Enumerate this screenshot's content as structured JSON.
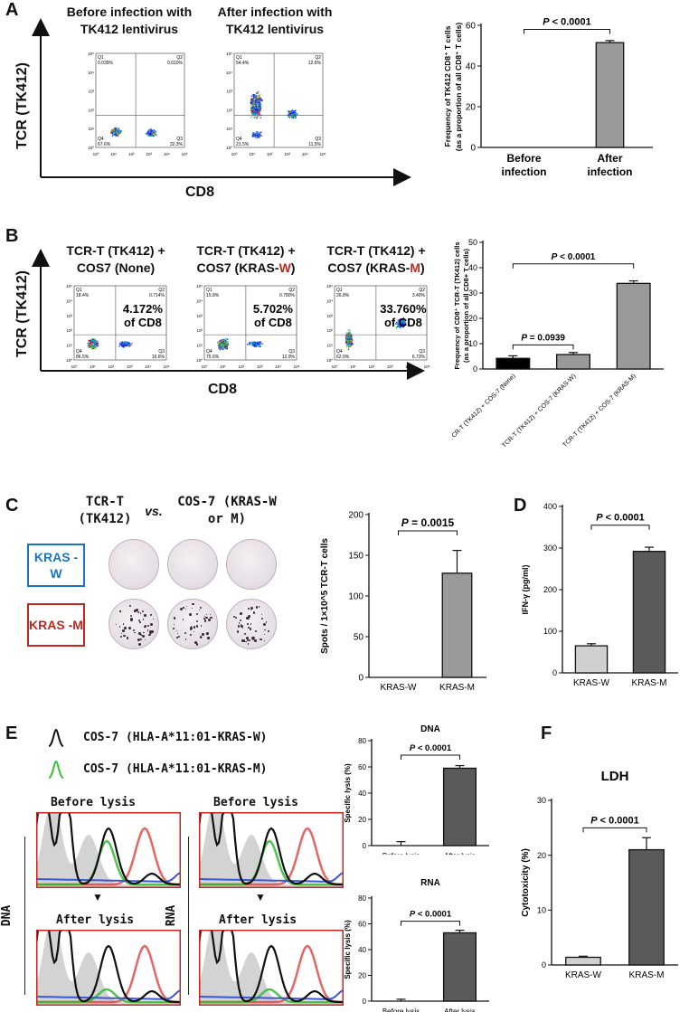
{
  "panels": {
    "A": {
      "letter": "A",
      "before_title": "Before infection with TK412 lentivirus",
      "after_title": "After infection with TK412 lentivirus",
      "y_axis": "TCR (TK412)",
      "x_axis": "CD8",
      "before_quadrants": {
        "q1": "0.039%",
        "q2": "0.010%",
        "q3": "32.3%",
        "q4": "67.6%"
      },
      "after_quadrants": {
        "q1": "54.4%",
        "q2": "12.6%",
        "q3": "11.5%",
        "q4": "21.5%"
      }
    },
    "B": {
      "letter": "B",
      "plots": [
        {
          "title": "TCR-T (TK412) + COS7 (None)",
          "title_l1": "TCR-T (TK412) +",
          "title_l2a": "COS7 (",
          "title_hl": "None",
          "title_l2b": ")",
          "hl_red": false,
          "big": "4.172%",
          "big2": "of CD8",
          "q1": "18.4%",
          "q2": "0.714%",
          "q3": "16.6%",
          "q4": "86.5%"
        },
        {
          "title": "TCR-T (TK412) + COS7 (KRAS-W)",
          "title_l1": "TCR-T (TK412) +",
          "title_l2a": "COS7 (KRAS-",
          "title_hl": "W",
          "title_l2b": ")",
          "hl_red": true,
          "big": "5.702%",
          "big2": "of CD8",
          "q1": "15.8%",
          "q2": "0.780%",
          "q3": "12.9%",
          "q4": "75.6%"
        },
        {
          "title": "TCR-T (TK412) + COS7 (KRAS-M)",
          "title_l1": "TCR-T (TK412) +",
          "title_l2a": "COS7 (KRAS-",
          "title_hl": "M",
          "title_l2b": ")",
          "hl_red": true,
          "big": "33.760%",
          "big2": "of CD8",
          "q1": "26.8%",
          "q2": "3.40%",
          "q3": "6.73%",
          "q4": "62.9%"
        }
      ],
      "y_axis": "TCR (TK412)",
      "x_axis": "CD8"
    },
    "C": {
      "letter": "C",
      "col1": "TCR-T (TK412)",
      "vs": "vs.",
      "col2": "COS-7 (KRAS-W or M)",
      "row1": "KRAS -W",
      "row2": "KRAS -M"
    },
    "D": {
      "letter": "D"
    },
    "E": {
      "letter": "E",
      "legend1": "COS-7 (HLA-A*11:01-KRAS-W)",
      "legend2": "COS-7 (HLA-A*11:01-KRAS-M)",
      "before": "Before lysis",
      "after": "After lysis",
      "dna": "DNA",
      "rna": "RNA",
      "arrow": "▼"
    },
    "F": {
      "letter": "F"
    }
  },
  "colors": {
    "black_bar": "#000000",
    "gray_bar": "#9a9a9a",
    "dark_bar": "#5a5a5a",
    "light_bar": "#d0d0d0",
    "red": "#c0281f",
    "blue": "#1b73c4"
  },
  "chart_data": [
    {
      "id": "A",
      "type": "bar",
      "categories": [
        "Before infection",
        "After infection"
      ],
      "values": [
        0,
        51.5
      ],
      "errors": [
        0,
        1
      ],
      "ylabel": "Frequency of TK412 CD8+ T cells (as a proportion of all CD8+ T cells)",
      "ylim": [
        0,
        60
      ],
      "yticks": [
        0,
        20,
        40,
        60
      ],
      "pvalue": "P < 0.0001"
    },
    {
      "id": "B",
      "type": "bar",
      "categories": [
        "TCR-T (TK412) + COS-7 (None)",
        "TCR-T (TK412) + COS-7 (KRAS-W)",
        "TCR-T (TK412) + COS-7 (KRAS-M)"
      ],
      "values": [
        4.2,
        5.7,
        33.8
      ],
      "errors": [
        1,
        0.8,
        1
      ],
      "ylabel": "Frequency of CD8+ TCR-T (TK412) cells (as a proportion of all CD8+ T cells)",
      "ylim": [
        0,
        50
      ],
      "yticks": [
        0,
        10,
        20,
        30,
        40,
        50
      ],
      "pvalues": [
        "P = 0.0939",
        "P < 0.0001"
      ]
    },
    {
      "id": "C",
      "type": "bar",
      "categories": [
        "KRAS-W",
        "KRAS-M"
      ],
      "values": [
        0,
        128
      ],
      "errors": [
        0,
        28
      ],
      "ylabel": "Spots / 1×10^5 TCR-T cells",
      "ylim": [
        0,
        200
      ],
      "yticks": [
        0,
        50,
        100,
        150,
        200
      ],
      "pvalue": "P = 0.0015"
    },
    {
      "id": "D",
      "type": "bar",
      "categories": [
        "KRAS-W",
        "KRAS-M"
      ],
      "values": [
        65,
        292
      ],
      "errors": [
        5,
        10
      ],
      "ylabel": "IFN-γ (pg/ml)",
      "ylim": [
        0,
        400
      ],
      "yticks": [
        0,
        100,
        200,
        300,
        400
      ],
      "pvalue": "P < 0.0001"
    },
    {
      "id": "E-DNA",
      "type": "bar",
      "title": "DNA",
      "categories": [
        "Before lysis",
        "After lysis"
      ],
      "values": [
        0,
        59
      ],
      "errors": [
        3,
        2
      ],
      "ylabel": "Specific lysis (%)",
      "ylim": [
        0,
        80
      ],
      "yticks": [
        0,
        20,
        40,
        60,
        80
      ],
      "pvalue": "P < 0.0001"
    },
    {
      "id": "E-RNA",
      "type": "bar",
      "title": "RNA",
      "categories": [
        "Before lysis",
        "After lysis"
      ],
      "values": [
        0,
        53
      ],
      "errors": [
        1.5,
        2
      ],
      "ylabel": "Specific lysis (%)",
      "ylim": [
        0,
        80
      ],
      "yticks": [
        0,
        20,
        40,
        60,
        80
      ],
      "pvalue": "P < 0.0001"
    },
    {
      "id": "F",
      "type": "bar",
      "title": "LDH",
      "categories": [
        "KRAS-W",
        "KRAS-M"
      ],
      "values": [
        1.4,
        21
      ],
      "errors": [
        0.2,
        2.2
      ],
      "ylabel": "Cytotoxicity (%)",
      "ylim": [
        0,
        30
      ],
      "yticks": [
        0,
        10,
        20,
        30
      ],
      "pvalue": "P < 0.0001"
    }
  ]
}
